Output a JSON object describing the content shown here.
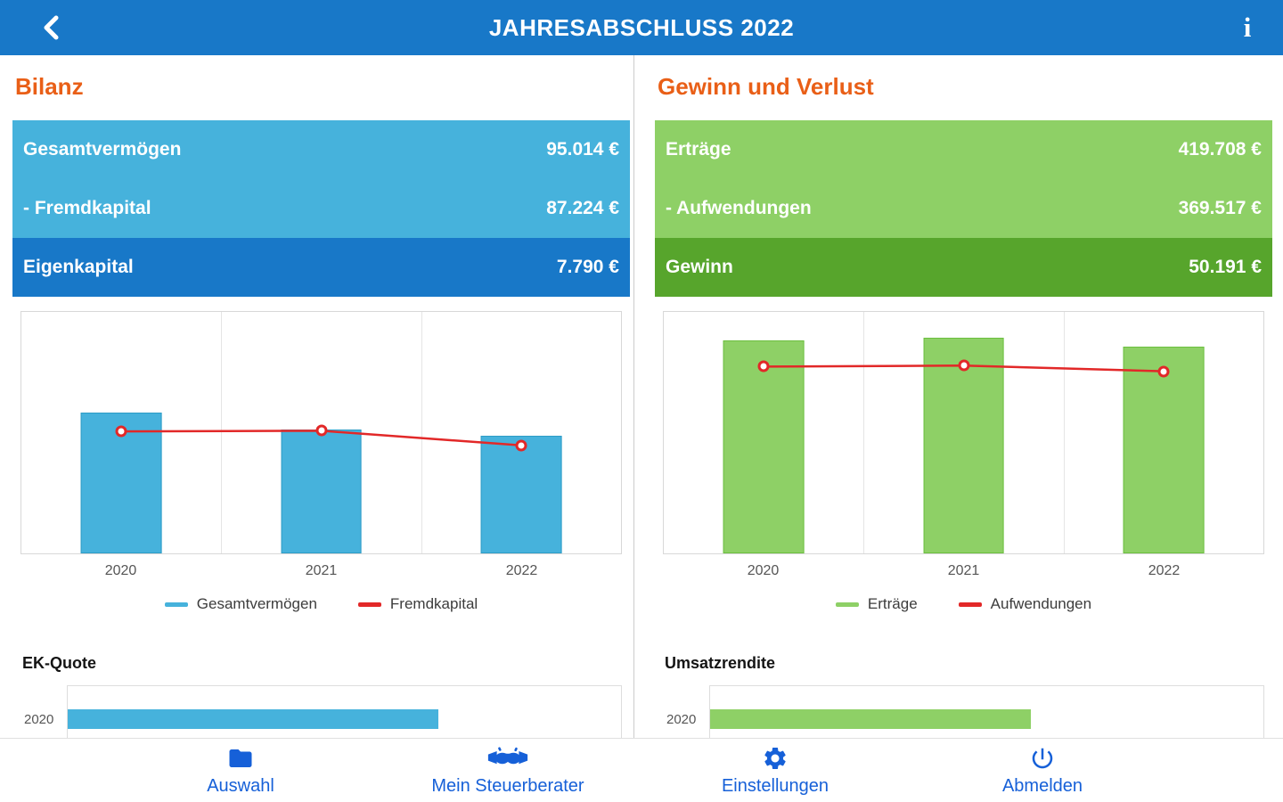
{
  "colors": {
    "primary_blue": "#1878c8",
    "light_blue": "#46b2dc",
    "light_green": "#8ed066",
    "dark_green": "#57a52c",
    "accent_orange": "#e95f17",
    "line_red": "#e22828",
    "nav_blue": "#1660d8"
  },
  "header": {
    "title": "JAHRESABSCHLUSS 2022",
    "back_icon": "chevron-left-icon",
    "info_icon": "info-icon",
    "info_glyph": "i"
  },
  "left_panel": {
    "heading": "Bilanz",
    "rows": [
      {
        "label": "Gesamtvermögen",
        "value": "95.014 €"
      },
      {
        "label": "- Fremdkapital",
        "value": "87.224 €"
      },
      {
        "label": "Eigenkapital",
        "value": "7.790 €"
      }
    ],
    "mini_heading": "EK-Quote"
  },
  "right_panel": {
    "heading": "Gewinn und Verlust",
    "rows": [
      {
        "label": "Erträge",
        "value": "419.708 €"
      },
      {
        "label": "- Aufwendungen",
        "value": "369.517 €"
      },
      {
        "label": "Gewinn",
        "value": "50.191 €"
      }
    ],
    "mini_heading": "Umsatzrendite"
  },
  "nav": {
    "items": [
      {
        "label": "Auswahl",
        "icon": "folder-icon"
      },
      {
        "label": "Mein Steuerberater",
        "icon": "handshake-icon"
      },
      {
        "label": "Einstellungen",
        "icon": "gear-icon"
      },
      {
        "label": "Abmelden",
        "icon": "power-icon"
      }
    ]
  },
  "chart_data": [
    {
      "name": "bilanz-chart",
      "type": "bar+line",
      "categories": [
        "2020",
        "2021",
        "2022"
      ],
      "series": [
        {
          "name": "Gesamtvermögen",
          "type": "bar",
          "color": "#46b2dc",
          "border": "#2d9cc6",
          "values": [
            114000,
            100000,
            95014
          ]
        },
        {
          "name": "Fremdkapital",
          "type": "line",
          "color": "#e22828",
          "values": [
            98500,
            99000,
            87224
          ]
        }
      ],
      "ylim": [
        0,
        195000
      ],
      "legend_position": "bottom",
      "grid": "vertical",
      "note": "2020/2021 values estimated from bar heights; 2022 values labeled in table"
    },
    {
      "name": "gewinn-verlust-chart",
      "type": "bar+line",
      "categories": [
        "2020",
        "2021",
        "2022"
      ],
      "series": [
        {
          "name": "Erträge",
          "type": "bar",
          "color": "#8ed066",
          "border": "#6cbf3f",
          "values": [
            432000,
            437000,
            419708
          ]
        },
        {
          "name": "Aufwendungen",
          "type": "line",
          "color": "#e22828",
          "values": [
            379000,
            381000,
            369517
          ]
        }
      ],
      "ylim": [
        0,
        490000
      ],
      "legend_position": "bottom",
      "grid": "vertical",
      "note": "2020/2021 values estimated from bar heights; 2022 values labeled in table"
    },
    {
      "name": "ek-quote-chart",
      "type": "horizontal-bar",
      "title": "EK-Quote",
      "categories": [
        "2020"
      ],
      "values": [
        67
      ],
      "xlim": [
        0,
        100
      ],
      "color": "#46b2dc",
      "note": "partially cut off by bottom navigation; bar fill estimated as % of track"
    },
    {
      "name": "umsatzrendite-chart",
      "type": "horizontal-bar",
      "title": "Umsatzrendite",
      "categories": [
        "2020"
      ],
      "values": [
        58
      ],
      "xlim": [
        0,
        100
      ],
      "color": "#8ed066",
      "note": "partially cut off by bottom navigation; bar fill estimated as % of track"
    }
  ]
}
